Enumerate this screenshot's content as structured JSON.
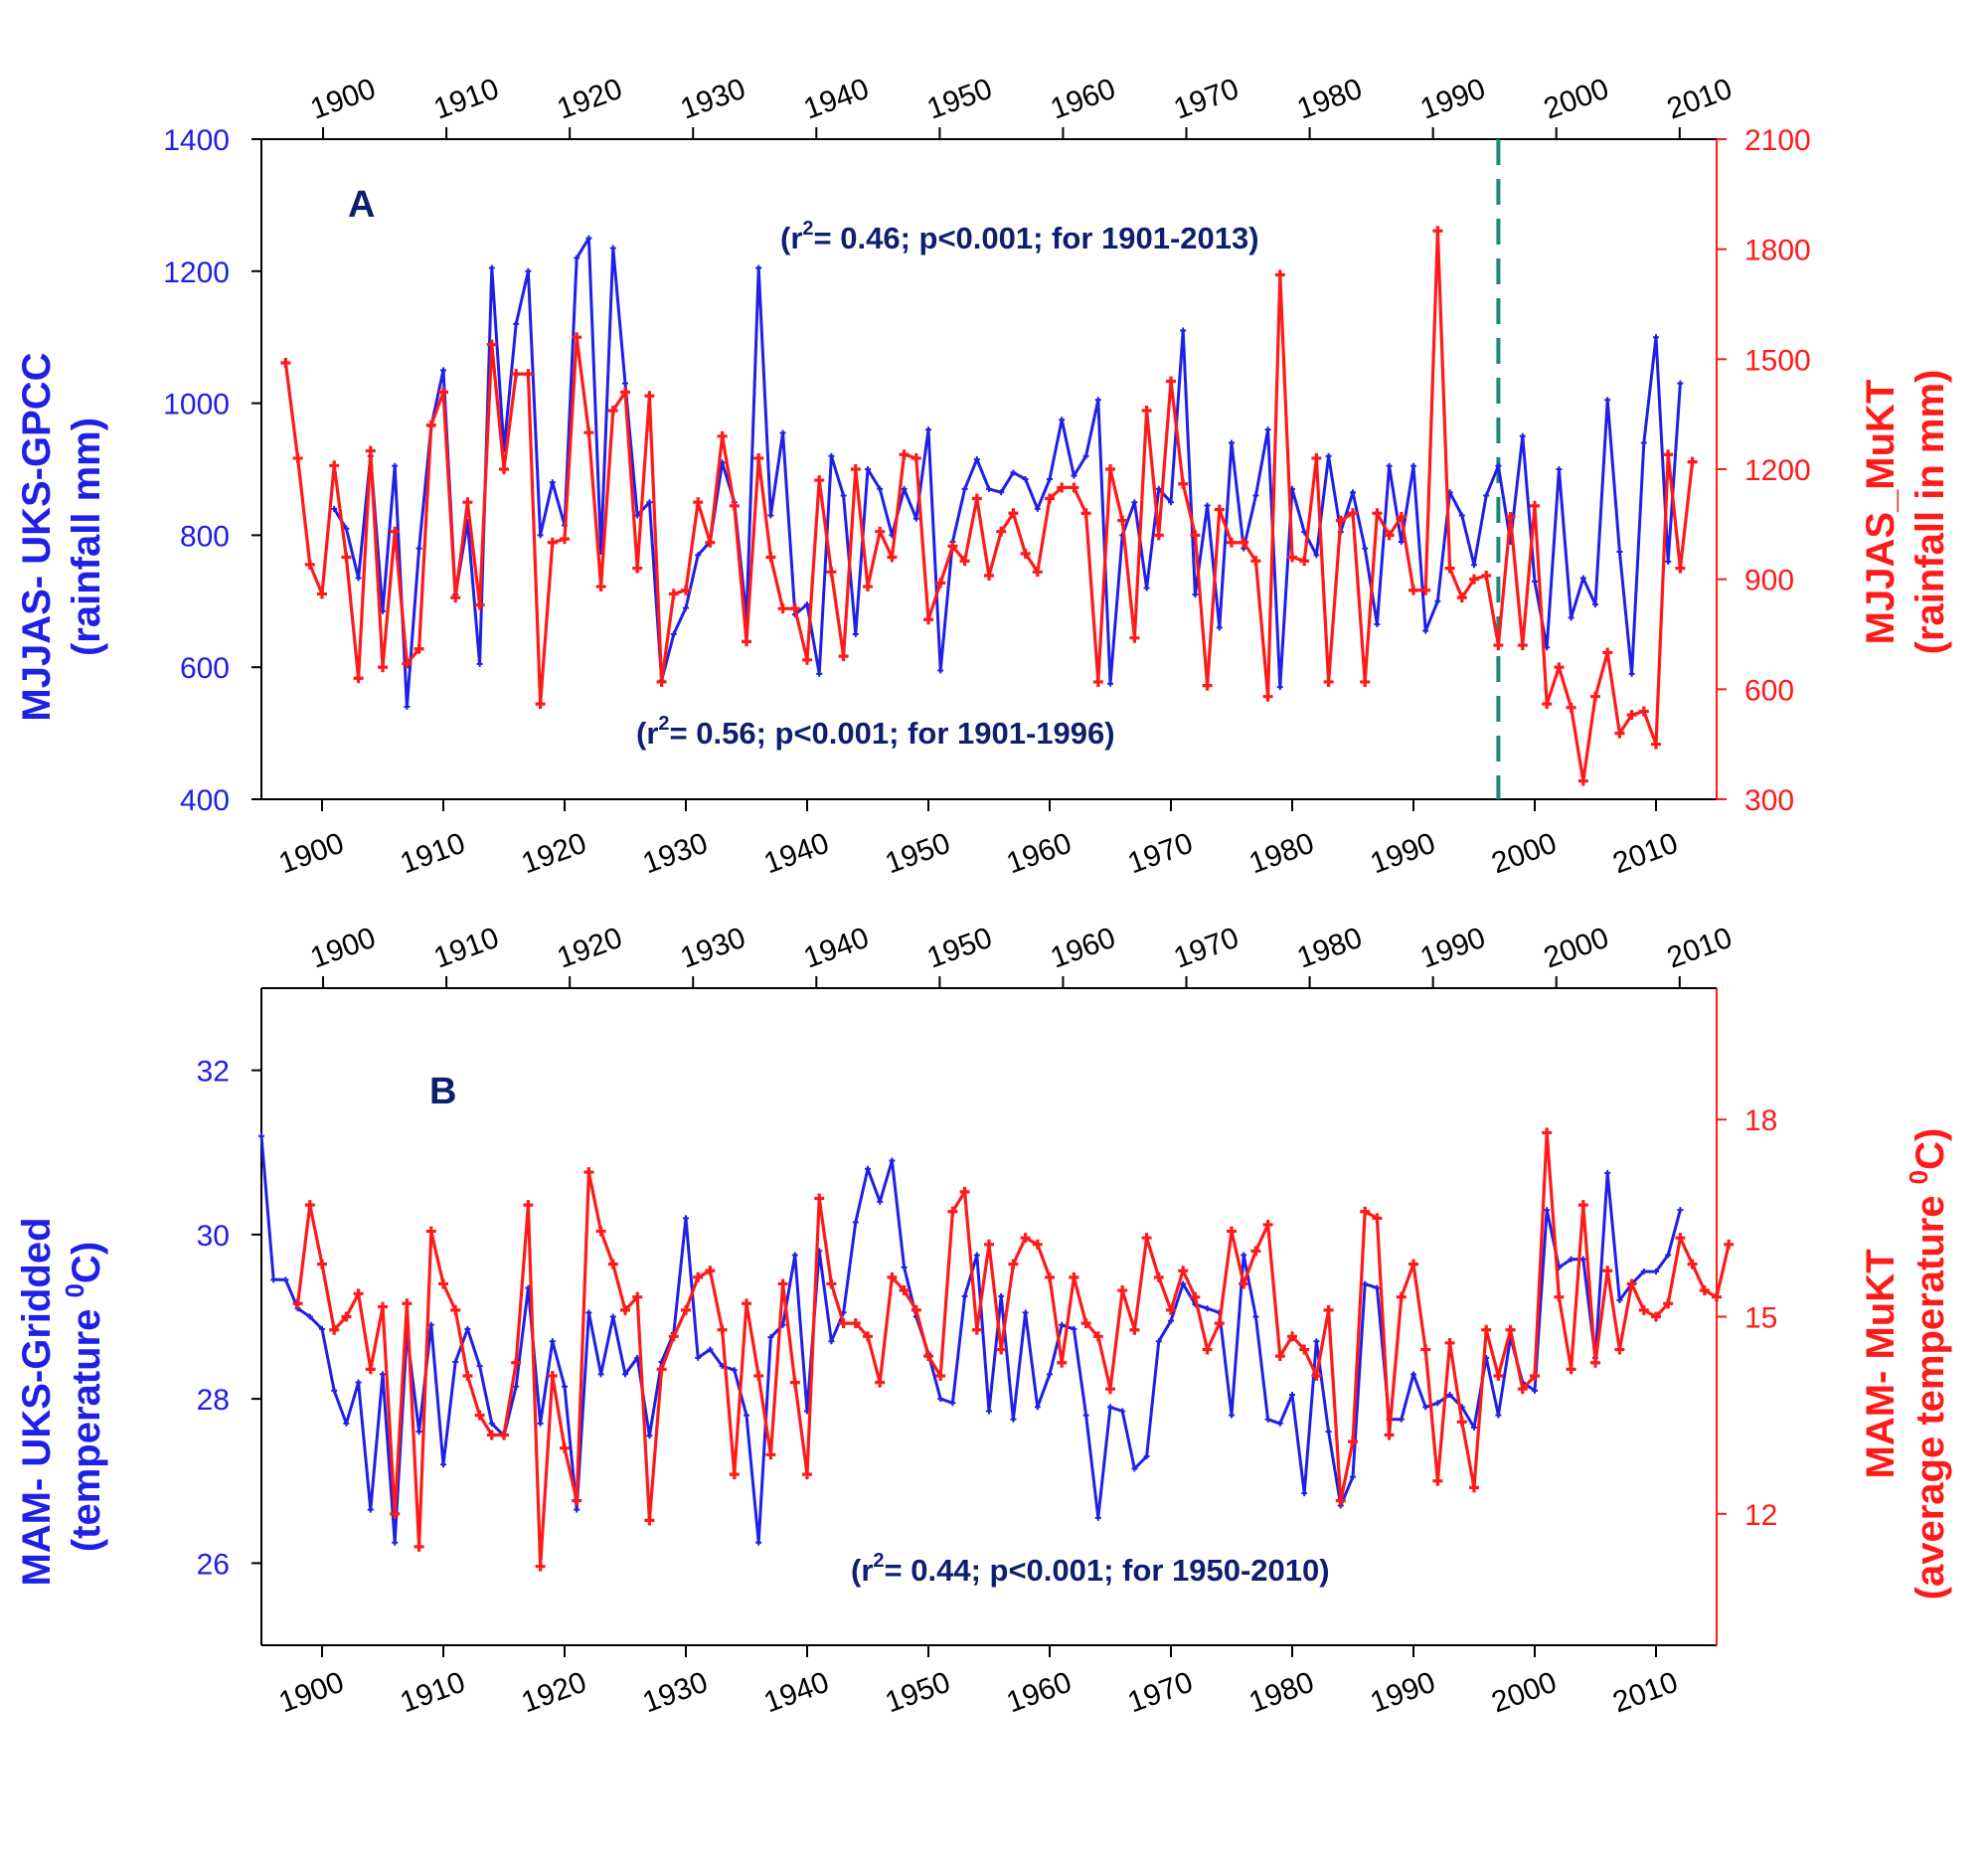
{
  "colors": {
    "left": "#1f1fe6",
    "right": "#ff1a1a",
    "annotation": "#0d1f6e",
    "dashed": "#1a8a78",
    "frame": "#000000"
  },
  "chart_data": [
    {
      "type": "line",
      "panel_label": "A",
      "x_ticks": [
        1900,
        1910,
        1920,
        1930,
        1940,
        1950,
        1960,
        1970,
        1980,
        1990,
        2000,
        2010
      ],
      "xlim": [
        1895,
        2015
      ],
      "top_xlim": [
        1895,
        2013
      ],
      "left_axis": {
        "label_line1": "MJJAS- UKS-GPCC",
        "label_line2": "(rainfall mm)",
        "ylim": [
          400,
          1400
        ],
        "ticks": [
          400,
          600,
          800,
          1000,
          1200,
          1400
        ]
      },
      "right_axis": {
        "label_line1": "MJJAS_MuKT",
        "label_line2": "(rainfall in mm)",
        "ylim": [
          300,
          2100
        ],
        "ticks": [
          300,
          600,
          900,
          1200,
          1500,
          1800,
          2100
        ]
      },
      "annotations": [
        {
          "pre": "(r",
          "sup": "2",
          "post": "= 0.46; p<0.001; for 1901-2013)"
        },
        {
          "pre": "(r",
          "sup": "2",
          "post": "= 0.56; p<0.001; for 1901-1996)"
        }
      ],
      "vline_x": 1997,
      "series": [
        {
          "axis": "left",
          "x_start": 1901,
          "values": [
            840,
            810,
            735,
            920,
            685,
            905,
            540,
            780,
            965,
            1050,
            710,
            820,
            605,
            1205,
            930,
            1120,
            1200,
            800,
            880,
            815,
            1220,
            1250,
            775,
            1235,
            1030,
            830,
            850,
            580,
            650,
            690,
            770,
            790,
            910,
            850,
            675,
            1205,
            830,
            955,
            680,
            695,
            590,
            920,
            860,
            650,
            900,
            870,
            800,
            870,
            825,
            960,
            595,
            790,
            870,
            915,
            870,
            865,
            895,
            885,
            840,
            885,
            975,
            890,
            920,
            1005,
            575,
            800,
            850,
            720,
            870,
            850,
            1110,
            710,
            845,
            660,
            940,
            780,
            860,
            960,
            570,
            870,
            805,
            770,
            920,
            805,
            865,
            780,
            665,
            905,
            790,
            905,
            655,
            700,
            865,
            830,
            755,
            860,
            905,
            790,
            950,
            730,
            630,
            900,
            675,
            735,
            695,
            1005,
            775,
            590,
            940,
            1100,
            760,
            1030
          ]
        },
        {
          "axis": "right",
          "x_start": 1897,
          "values": [
            1490,
            1230,
            940,
            860,
            1210,
            960,
            630,
            1250,
            660,
            1030,
            670,
            710,
            1320,
            1410,
            850,
            1110,
            830,
            1540,
            1200,
            1460,
            1460,
            560,
            1000,
            1010,
            1560,
            1300,
            880,
            1360,
            1410,
            930,
            1400,
            620,
            860,
            870,
            1110,
            1000,
            1290,
            1100,
            730,
            1230,
            960,
            820,
            820,
            680,
            1170,
            920,
            690,
            1200,
            880,
            1030,
            960,
            1240,
            1230,
            790,
            890,
            990,
            950,
            1120,
            910,
            1030,
            1080,
            970,
            920,
            1120,
            1150,
            1150,
            1080,
            620,
            1200,
            1060,
            740,
            1360,
            1020,
            1440,
            1160,
            1020,
            610,
            1090,
            1000,
            1000,
            950,
            580,
            1730,
            960,
            950,
            1230,
            620,
            1060,
            1080,
            620,
            1080,
            1020,
            1070,
            870,
            870,
            1850,
            930,
            850,
            900,
            910,
            720,
            1070,
            720,
            1100,
            560,
            660,
            550,
            350,
            580,
            700,
            480,
            530,
            540,
            450,
            1240,
            930,
            1220
          ]
        }
      ]
    },
    {
      "type": "line",
      "panel_label": "B",
      "x_ticks": [
        1900,
        1910,
        1920,
        1930,
        1940,
        1950,
        1960,
        1970,
        1980,
        1990,
        2000,
        2010
      ],
      "xlim": [
        1895,
        2015
      ],
      "top_xlim": [
        1895,
        2013
      ],
      "left_axis": {
        "label_line1": "MAM- UKS-Gridded",
        "label_line2": "(temperature ",
        "label_sup": "0",
        "label_post": "C)",
        "ylim": [
          25,
          33
        ],
        "ticks": [
          26,
          28,
          30,
          32
        ]
      },
      "right_axis": {
        "label_line1": "MAM- MuKT",
        "label_line2": "(average temperature ",
        "label_sup": "0",
        "label_post": "C)",
        "ylim": [
          10,
          20
        ],
        "ticks": [
          12,
          15,
          18
        ]
      },
      "annotations": [
        {
          "pre": "(r",
          "sup": "2",
          "post": "= 0.44; p<0.001; for 1950-2010)"
        }
      ],
      "series": [
        {
          "axis": "left",
          "x_start": 1895,
          "values": [
            31.2,
            29.45,
            29.45,
            29.1,
            29,
            28.85,
            28.1,
            27.7,
            28.2,
            26.65,
            28.3,
            26.25,
            28.8,
            27.6,
            28.9,
            27.2,
            28.45,
            28.85,
            28.4,
            27.7,
            27.55,
            28.15,
            29.35,
            27.7,
            28.7,
            28.15,
            26.65,
            29.05,
            28.3,
            29,
            28.3,
            28.5,
            27.55,
            28.45,
            28.8,
            30.2,
            28.5,
            28.6,
            28.4,
            28.35,
            27.8,
            26.25,
            28.75,
            28.9,
            29.75,
            27.85,
            29.8,
            28.7,
            29.05,
            30.15,
            30.8,
            30.4,
            30.9,
            29.6,
            29,
            28.55,
            28,
            27.95,
            29.25,
            29.75,
            27.85,
            29.25,
            27.75,
            29.05,
            27.9,
            28.3,
            28.9,
            28.85,
            27.8,
            26.55,
            27.9,
            27.85,
            27.15,
            27.3,
            28.7,
            28.95,
            29.4,
            29.15,
            29.1,
            29.05,
            27.8,
            29.75,
            29,
            27.75,
            27.7,
            28.05,
            26.85,
            28.7,
            27.6,
            26.7,
            27.05,
            29.4,
            29.35,
            27.75,
            27.75,
            28.3,
            27.9,
            27.95,
            28.05,
            27.9,
            27.65,
            28.5,
            27.8,
            28.75,
            28.2,
            28.1,
            30.3,
            29.6,
            29.7,
            29.7,
            28.5,
            30.75,
            29.2,
            29.4,
            29.55,
            29.55,
            29.75,
            30.3
          ]
        },
        {
          "axis": "right",
          "x_start": 1898,
          "values": [
            15.2,
            16.7,
            15.8,
            14.8,
            15,
            15.35,
            14.2,
            15.15,
            12,
            15.2,
            11.5,
            16.3,
            15.5,
            15.1,
            14.1,
            13.5,
            13.2,
            13.2,
            14.3,
            16.7,
            11.2,
            14.1,
            13,
            12.2,
            17.2,
            16.3,
            15.8,
            15.1,
            15.3,
            11.9,
            14.2,
            14.7,
            15.1,
            15.6,
            15.7,
            14.8,
            12.6,
            15.2,
            14.1,
            12.9,
            15.5,
            14,
            12.6,
            16.8,
            15.5,
            14.9,
            14.9,
            14.7,
            14,
            15.6,
            15.4,
            15.1,
            14.4,
            14.1,
            16.6,
            16.9,
            14.8,
            16.1,
            14.5,
            15.8,
            16.2,
            16.1,
            15.6,
            14.3,
            15.6,
            14.9,
            14.7,
            13.9,
            15.4,
            14.8,
            16.2,
            15.6,
            15.1,
            15.7,
            15.3,
            14.5,
            14.9,
            16.3,
            15.5,
            16,
            16.4,
            14.4,
            14.7,
            14.5,
            14.1,
            15.1,
            12.2,
            13.1,
            16.6,
            16.5,
            13.2,
            15.3,
            15.8,
            14.5,
            12.5,
            14.6,
            13.4,
            12.4,
            14.8,
            14.1,
            14.8,
            13.9,
            14.1,
            17.8,
            15.3,
            14.2,
            16.7,
            14.3,
            15.7,
            14.5,
            15.5,
            15.1,
            15,
            15.2,
            16.2,
            15.8,
            15.4,
            15.3,
            16.1
          ]
        }
      ]
    }
  ]
}
